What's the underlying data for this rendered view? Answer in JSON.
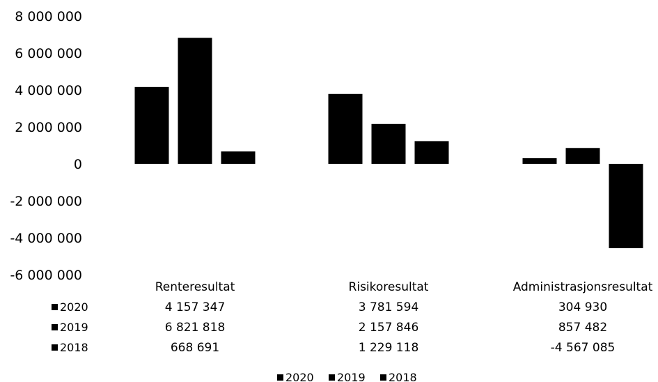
{
  "chart_data": {
    "type": "bar",
    "categories": [
      "Renteresultat",
      "Risikoresultat",
      "Administrasjonsresultat"
    ],
    "series": [
      {
        "name": "2020",
        "values": [
          4157347,
          3781594,
          304930
        ],
        "display": [
          "4 157 347",
          "3 781 594",
          "304 930"
        ]
      },
      {
        "name": "2019",
        "values": [
          6821818,
          2157846,
          857482
        ],
        "display": [
          "6 821 818",
          "2 157 846",
          "857 482"
        ]
      },
      {
        "name": "2018",
        "values": [
          668691,
          1229118,
          -4567085
        ],
        "display": [
          "668 691",
          "1 229 118",
          "-4 567 085"
        ]
      }
    ],
    "ylim": [
      -6000000,
      8000000
    ],
    "yticks": [
      8000000,
      6000000,
      4000000,
      2000000,
      0,
      -2000000,
      -4000000,
      -6000000
    ],
    "ytick_labels": [
      "8 000 000",
      "6 000 000",
      "4 000 000",
      "2 000 000",
      "0",
      "-2 000 000",
      "-4 000 000",
      "-6 000 000"
    ],
    "grid": false,
    "data_table": true,
    "legend_position": "bottom",
    "bar_color": "#000000",
    "xlabel": "",
    "ylabel": ""
  }
}
